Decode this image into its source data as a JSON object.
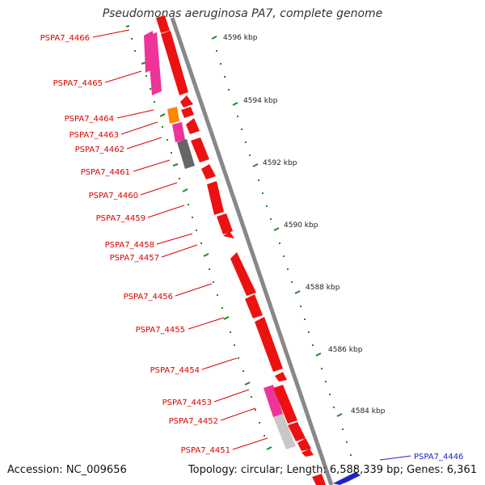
{
  "title": "Pseudomonas aeruginosa PA7, complete genome",
  "colors": {
    "backbone": "#888888",
    "gene_red": "#ee1111",
    "gene_pink": "#ee3399",
    "gene_orange": "#ff8800",
    "gene_darkgray": "#666666",
    "gene_lightgray": "#c8c8c8",
    "tick": "#228822",
    "label_red": "#dd0000",
    "label_blue": "#2222cc"
  },
  "scale_labels": [
    "4596 kbp",
    "4594 kbp",
    "4592 kbp",
    "4590 kbp",
    "4588 kbp",
    "4586 kbp",
    "4584 kbp"
  ],
  "gene_labels": [
    "PSPA7_4466",
    "PSPA7_4465",
    "PSPA7_4464",
    "PSPA7_4463",
    "PSPA7_4462",
    "PSPA7_4461",
    "PSPA7_4460",
    "PSPA7_4459",
    "PSPA7_4458",
    "PSPA7_4457",
    "PSPA7_4456",
    "PSPA7_4455",
    "PSPA7_4454",
    "PSPA7_4453",
    "PSPA7_4452",
    "PSPA7_4451"
  ],
  "outer_label": "PSPA7_4446",
  "footer": {
    "accession": "Accession: NC_009656",
    "summary": "Topology: circular; Length: 6,588,339 bp; Genes: 6,361"
  }
}
